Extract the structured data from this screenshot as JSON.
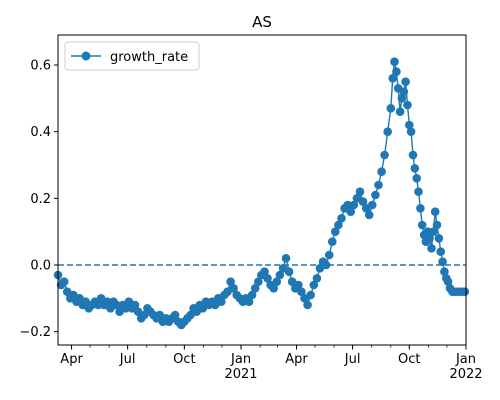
{
  "chart_data": {
    "type": "line",
    "title": "AS",
    "xlabel": "",
    "ylabel": "",
    "xlim": [
      "2020-03-10",
      "2022-01-01"
    ],
    "ylim": [
      -0.24,
      0.69
    ],
    "legend": "top-left",
    "grid": false,
    "color": "#1f77b4",
    "reference_line": {
      "y": 0.0,
      "style": "dashed"
    },
    "y_ticks": [
      {
        "value": -0.2,
        "label": "−0.2"
      },
      {
        "value": 0.0,
        "label": "0.0"
      },
      {
        "value": 0.2,
        "label": "0.2"
      },
      {
        "value": 0.4,
        "label": "0.4"
      },
      {
        "value": 0.6,
        "label": "0.6"
      }
    ],
    "x_ticks": [
      {
        "date": "2020-04-01",
        "label": "Apr",
        "sublabel": ""
      },
      {
        "date": "2020-07-01",
        "label": "Jul",
        "sublabel": ""
      },
      {
        "date": "2020-10-01",
        "label": "Oct",
        "sublabel": ""
      },
      {
        "date": "2021-01-01",
        "label": "Jan",
        "sublabel": "2021"
      },
      {
        "date": "2021-04-01",
        "label": "Apr",
        "sublabel": ""
      },
      {
        "date": "2021-07-01",
        "label": "Jul",
        "sublabel": ""
      },
      {
        "date": "2021-10-01",
        "label": "Oct",
        "sublabel": ""
      },
      {
        "date": "2022-01-01",
        "label": "Jan",
        "sublabel": "2022"
      }
    ],
    "series": [
      {
        "name": "growth_rate",
        "points": [
          [
            "2020-03-10",
            -0.03
          ],
          [
            "2020-03-15",
            -0.06
          ],
          [
            "2020-03-20",
            -0.05
          ],
          [
            "2020-03-25",
            -0.08
          ],
          [
            "2020-03-30",
            -0.1
          ],
          [
            "2020-04-04",
            -0.09
          ],
          [
            "2020-04-09",
            -0.11
          ],
          [
            "2020-04-14",
            -0.1
          ],
          [
            "2020-04-19",
            -0.12
          ],
          [
            "2020-04-24",
            -0.11
          ],
          [
            "2020-04-29",
            -0.13
          ],
          [
            "2020-05-04",
            -0.12
          ],
          [
            "2020-05-09",
            -0.11
          ],
          [
            "2020-05-14",
            -0.12
          ],
          [
            "2020-05-19",
            -0.1
          ],
          [
            "2020-05-24",
            -0.12
          ],
          [
            "2020-05-29",
            -0.11
          ],
          [
            "2020-06-03",
            -0.13
          ],
          [
            "2020-06-08",
            -0.11
          ],
          [
            "2020-06-13",
            -0.12
          ],
          [
            "2020-06-18",
            -0.14
          ],
          [
            "2020-06-23",
            -0.12
          ],
          [
            "2020-06-28",
            -0.13
          ],
          [
            "2020-07-03",
            -0.11
          ],
          [
            "2020-07-08",
            -0.13
          ],
          [
            "2020-07-13",
            -0.12
          ],
          [
            "2020-07-18",
            -0.14
          ],
          [
            "2020-07-23",
            -0.16
          ],
          [
            "2020-07-28",
            -0.15
          ],
          [
            "2020-08-02",
            -0.13
          ],
          [
            "2020-08-07",
            -0.14
          ],
          [
            "2020-08-12",
            -0.15
          ],
          [
            "2020-08-17",
            -0.16
          ],
          [
            "2020-08-22",
            -0.15
          ],
          [
            "2020-08-27",
            -0.17
          ],
          [
            "2020-09-01",
            -0.16
          ],
          [
            "2020-09-06",
            -0.17
          ],
          [
            "2020-09-11",
            -0.16
          ],
          [
            "2020-09-16",
            -0.15
          ],
          [
            "2020-09-21",
            -0.17
          ],
          [
            "2020-09-26",
            -0.18
          ],
          [
            "2020-10-01",
            -0.17
          ],
          [
            "2020-10-06",
            -0.16
          ],
          [
            "2020-10-11",
            -0.15
          ],
          [
            "2020-10-16",
            -0.13
          ],
          [
            "2020-10-21",
            -0.14
          ],
          [
            "2020-10-26",
            -0.12
          ],
          [
            "2020-10-31",
            -0.13
          ],
          [
            "2020-11-05",
            -0.11
          ],
          [
            "2020-11-10",
            -0.12
          ],
          [
            "2020-11-15",
            -0.11
          ],
          [
            "2020-11-20",
            -0.12
          ],
          [
            "2020-11-25",
            -0.1
          ],
          [
            "2020-11-30",
            -0.11
          ],
          [
            "2020-12-05",
            -0.09
          ],
          [
            "2020-12-10",
            -0.08
          ],
          [
            "2020-12-15",
            -0.05
          ],
          [
            "2020-12-20",
            -0.07
          ],
          [
            "2020-12-25",
            -0.09
          ],
          [
            "2020-12-30",
            -0.1
          ],
          [
            "2021-01-04",
            -0.11
          ],
          [
            "2021-01-09",
            -0.1
          ],
          [
            "2021-01-14",
            -0.11
          ],
          [
            "2021-01-19",
            -0.09
          ],
          [
            "2021-01-24",
            -0.07
          ],
          [
            "2021-01-29",
            -0.05
          ],
          [
            "2021-02-03",
            -0.03
          ],
          [
            "2021-02-08",
            -0.02
          ],
          [
            "2021-02-13",
            -0.04
          ],
          [
            "2021-02-18",
            -0.06
          ],
          [
            "2021-02-23",
            -0.07
          ],
          [
            "2021-02-28",
            -0.05
          ],
          [
            "2021-03-05",
            -0.03
          ],
          [
            "2021-03-10",
            -0.01
          ],
          [
            "2021-03-15",
            0.02
          ],
          [
            "2021-03-20",
            -0.02
          ],
          [
            "2021-03-25",
            -0.05
          ],
          [
            "2021-03-30",
            -0.07
          ],
          [
            "2021-04-04",
            -0.06
          ],
          [
            "2021-04-09",
            -0.08
          ],
          [
            "2021-04-14",
            -0.1
          ],
          [
            "2021-04-19",
            -0.12
          ],
          [
            "2021-04-24",
            -0.09
          ],
          [
            "2021-04-29",
            -0.06
          ],
          [
            "2021-05-04",
            -0.04
          ],
          [
            "2021-05-09",
            -0.01
          ],
          [
            "2021-05-14",
            0.01
          ],
          [
            "2021-05-19",
            0.0
          ],
          [
            "2021-05-24",
            0.03
          ],
          [
            "2021-05-29",
            0.07
          ],
          [
            "2021-06-03",
            0.1
          ],
          [
            "2021-06-08",
            0.12
          ],
          [
            "2021-06-13",
            0.14
          ],
          [
            "2021-06-18",
            0.17
          ],
          [
            "2021-06-23",
            0.18
          ],
          [
            "2021-06-28",
            0.16
          ],
          [
            "2021-07-03",
            0.18
          ],
          [
            "2021-07-08",
            0.2
          ],
          [
            "2021-07-13",
            0.22
          ],
          [
            "2021-07-18",
            0.19
          ],
          [
            "2021-07-23",
            0.17
          ],
          [
            "2021-07-28",
            0.15
          ],
          [
            "2021-08-02",
            0.18
          ],
          [
            "2021-08-07",
            0.21
          ],
          [
            "2021-08-12",
            0.24
          ],
          [
            "2021-08-17",
            0.28
          ],
          [
            "2021-08-22",
            0.33
          ],
          [
            "2021-08-27",
            0.4
          ],
          [
            "2021-09-01",
            0.47
          ],
          [
            "2021-09-04",
            0.56
          ],
          [
            "2021-09-07",
            0.61
          ],
          [
            "2021-09-10",
            0.58
          ],
          [
            "2021-09-13",
            0.53
          ],
          [
            "2021-09-16",
            0.46
          ],
          [
            "2021-09-19",
            0.5
          ],
          [
            "2021-09-22",
            0.52
          ],
          [
            "2021-09-25",
            0.55
          ],
          [
            "2021-09-28",
            0.48
          ],
          [
            "2021-10-01",
            0.42
          ],
          [
            "2021-10-04",
            0.4
          ],
          [
            "2021-10-07",
            0.33
          ],
          [
            "2021-10-10",
            0.29
          ],
          [
            "2021-10-13",
            0.26
          ],
          [
            "2021-10-16",
            0.22
          ],
          [
            "2021-10-19",
            0.17
          ],
          [
            "2021-10-22",
            0.12
          ],
          [
            "2021-10-25",
            0.09
          ],
          [
            "2021-10-28",
            0.07
          ],
          [
            "2021-10-31",
            0.1
          ],
          [
            "2021-11-03",
            0.08
          ],
          [
            "2021-11-06",
            0.05
          ],
          [
            "2021-11-09",
            0.1
          ],
          [
            "2021-11-12",
            0.16
          ],
          [
            "2021-11-15",
            0.12
          ],
          [
            "2021-11-18",
            0.08
          ],
          [
            "2021-11-21",
            0.04
          ],
          [
            "2021-11-24",
            0.01
          ],
          [
            "2021-11-27",
            -0.02
          ],
          [
            "2021-11-30",
            -0.04
          ],
          [
            "2021-12-03",
            -0.05
          ],
          [
            "2021-12-06",
            -0.07
          ],
          [
            "2021-12-10",
            -0.08
          ],
          [
            "2021-12-15",
            -0.08
          ],
          [
            "2021-12-20",
            -0.08
          ],
          [
            "2021-12-25",
            -0.08
          ],
          [
            "2021-12-30",
            -0.08
          ]
        ]
      }
    ]
  }
}
